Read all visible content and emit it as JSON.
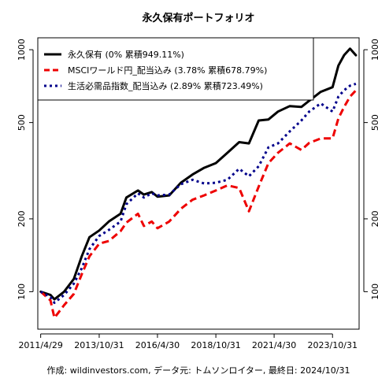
{
  "chart_data": {
    "type": "line",
    "title": "永久保有ポートフォリオ",
    "footer": "作成: wildinvestors.com, データ元: トムソンロイター, 最終日: 2024/10/31",
    "x_scale": "date",
    "x_range": [
      "2011-03-15",
      "2024-12-20"
    ],
    "x_ticks": [
      {
        "date": "2011-04-29",
        "label": "2011/4/29"
      },
      {
        "date": "2013-10-31",
        "label": "2013/10/31"
      },
      {
        "date": "2016-04-30",
        "label": "2016/4/30"
      },
      {
        "date": "2018-10-31",
        "label": "2018/10/31"
      },
      {
        "date": "2021-04-30",
        "label": "2021/4/30"
      },
      {
        "date": "2023-10-31",
        "label": "2023/10/31"
      }
    ],
    "y_scale": "log",
    "ylim": [
      70,
      1120
    ],
    "y_ticks": [
      100,
      200,
      500,
      1000
    ],
    "grid": false,
    "legend_position": "top-left",
    "series": [
      {
        "name": "永久保有 (0% 累積949.11%)",
        "color": "#000000",
        "style": "solid",
        "width": 3,
        "points": [
          [
            "2011-04-29",
            100
          ],
          [
            "2011-09-30",
            97
          ],
          [
            "2011-11-30",
            93
          ],
          [
            "2012-04-30",
            100
          ],
          [
            "2012-09-30",
            113
          ],
          [
            "2013-01-31",
            140
          ],
          [
            "2013-05-31",
            168
          ],
          [
            "2013-10-31",
            179
          ],
          [
            "2014-03-31",
            195
          ],
          [
            "2014-09-30",
            210
          ],
          [
            "2014-12-31",
            245
          ],
          [
            "2015-06-30",
            262
          ],
          [
            "2015-09-30",
            252
          ],
          [
            "2016-01-31",
            258
          ],
          [
            "2016-04-30",
            247
          ],
          [
            "2016-10-31",
            250
          ],
          [
            "2017-04-30",
            282
          ],
          [
            "2017-10-31",
            305
          ],
          [
            "2018-04-30",
            325
          ],
          [
            "2018-10-31",
            340
          ],
          [
            "2019-04-30",
            375
          ],
          [
            "2019-10-31",
            415
          ],
          [
            "2020-03-31",
            410
          ],
          [
            "2020-08-31",
            510
          ],
          [
            "2021-01-31",
            515
          ],
          [
            "2021-06-30",
            555
          ],
          [
            "2021-12-31",
            585
          ],
          [
            "2022-06-30",
            580
          ],
          [
            "2022-10-31",
            615
          ],
          [
            "2023-04-30",
            670
          ],
          [
            "2023-10-31",
            700
          ],
          [
            "2024-01-31",
            860
          ],
          [
            "2024-04-30",
            950
          ],
          [
            "2024-07-31",
            1010
          ],
          [
            "2024-10-31",
            949
          ]
        ]
      },
      {
        "name": "MSCIワールド円_配当込み (3.78% 累積678.79%)",
        "color": "#ee0000",
        "style": "dashed",
        "width": 3,
        "points": [
          [
            "2011-04-29",
            100
          ],
          [
            "2011-09-30",
            92
          ],
          [
            "2011-11-30",
            78
          ],
          [
            "2012-04-30",
            88
          ],
          [
            "2012-09-30",
            98
          ],
          [
            "2013-01-31",
            118
          ],
          [
            "2013-05-31",
            140
          ],
          [
            "2013-10-31",
            158
          ],
          [
            "2014-03-31",
            162
          ],
          [
            "2014-09-30",
            178
          ],
          [
            "2014-12-31",
            193
          ],
          [
            "2015-06-30",
            210
          ],
          [
            "2015-09-30",
            187
          ],
          [
            "2016-01-31",
            195
          ],
          [
            "2016-04-30",
            183
          ],
          [
            "2016-10-31",
            195
          ],
          [
            "2017-04-30",
            220
          ],
          [
            "2017-10-31",
            240
          ],
          [
            "2018-04-30",
            250
          ],
          [
            "2018-10-31",
            262
          ],
          [
            "2019-04-30",
            275
          ],
          [
            "2019-10-31",
            268
          ],
          [
            "2020-03-31",
            215
          ],
          [
            "2020-08-31",
            272
          ],
          [
            "2021-01-31",
            340
          ],
          [
            "2021-06-30",
            375
          ],
          [
            "2021-12-31",
            410
          ],
          [
            "2022-06-30",
            385
          ],
          [
            "2022-10-31",
            412
          ],
          [
            "2023-04-30",
            430
          ],
          [
            "2023-10-31",
            430
          ],
          [
            "2024-01-31",
            520
          ],
          [
            "2024-04-30",
            580
          ],
          [
            "2024-07-31",
            640
          ],
          [
            "2024-10-31",
            679
          ]
        ]
      },
      {
        "name": "生活必需品指数_配当込み (2.89% 累積723.49%)",
        "color": "#00008b",
        "style": "dotted",
        "width": 3,
        "points": [
          [
            "2011-04-29",
            100
          ],
          [
            "2011-09-30",
            95
          ],
          [
            "2011-11-30",
            90
          ],
          [
            "2012-04-30",
            97
          ],
          [
            "2012-09-30",
            108
          ],
          [
            "2013-01-31",
            125
          ],
          [
            "2013-05-31",
            150
          ],
          [
            "2013-10-31",
            170
          ],
          [
            "2014-03-31",
            180
          ],
          [
            "2014-09-30",
            195
          ],
          [
            "2014-12-31",
            230
          ],
          [
            "2015-06-30",
            255
          ],
          [
            "2015-09-30",
            245
          ],
          [
            "2016-01-31",
            255
          ],
          [
            "2016-04-30",
            250
          ],
          [
            "2016-10-31",
            252
          ],
          [
            "2017-04-30",
            278
          ],
          [
            "2017-10-31",
            290
          ],
          [
            "2018-04-30",
            280
          ],
          [
            "2018-10-31",
            282
          ],
          [
            "2019-04-30",
            290
          ],
          [
            "2019-10-31",
            322
          ],
          [
            "2020-03-31",
            300
          ],
          [
            "2020-08-31",
            330
          ],
          [
            "2021-01-31",
            395
          ],
          [
            "2021-06-30",
            410
          ],
          [
            "2021-12-31",
            460
          ],
          [
            "2022-06-30",
            510
          ],
          [
            "2022-10-31",
            555
          ],
          [
            "2023-04-30",
            600
          ],
          [
            "2023-10-31",
            555
          ],
          [
            "2024-01-31",
            640
          ],
          [
            "2024-04-30",
            680
          ],
          [
            "2024-07-31",
            710
          ],
          [
            "2024-10-31",
            723
          ]
        ]
      }
    ]
  }
}
